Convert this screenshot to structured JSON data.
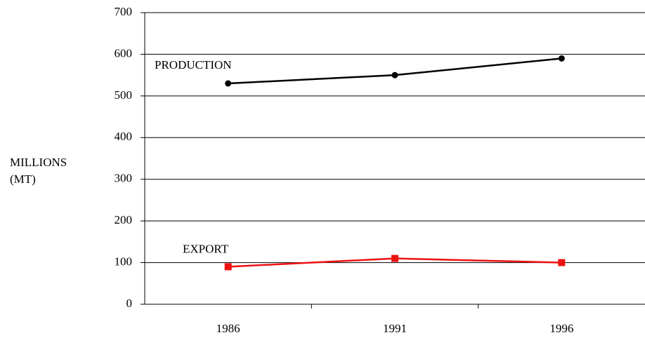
{
  "chart_data": {
    "type": "line",
    "ylabel": [
      "MILLIONS",
      "(MT)"
    ],
    "categories": [
      "1986",
      "1991",
      "1996"
    ],
    "series": [
      {
        "name": "PRODUCTION",
        "color": "#000000",
        "marker": "circle",
        "values": [
          530,
          550,
          590
        ]
      },
      {
        "name": "EXPORT",
        "color": "#ee1111",
        "marker": "square",
        "values": [
          90,
          110,
          100
        ]
      }
    ],
    "ylim": [
      0,
      700
    ],
    "yticks": [
      0,
      100,
      200,
      300,
      400,
      500,
      600,
      700
    ],
    "grid": true
  }
}
